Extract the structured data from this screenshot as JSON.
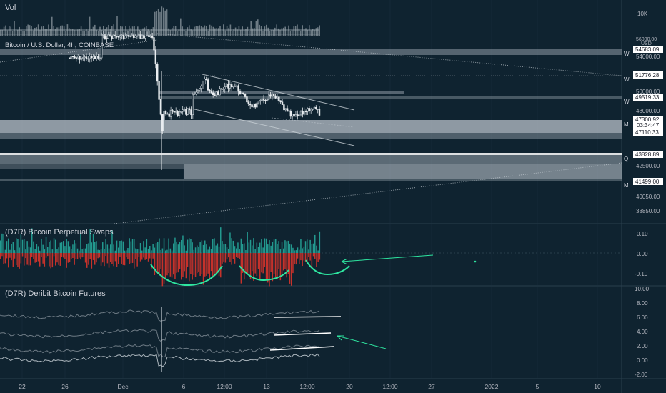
{
  "chart_data": {
    "type": "candlestick",
    "main_pane": {
      "title": "Bitcoin / U.S. Dollar, 4h, COINBASE",
      "currency": "USD",
      "y_ticks": [
        "56000.00",
        "54000.00",
        "50000.00",
        "48000.00",
        "42500.00",
        "40050.00",
        "38850.00"
      ],
      "price_tags": [
        {
          "value": "54683.09",
          "tf": "W"
        },
        {
          "value": "51776.28",
          "tf": "W"
        },
        {
          "value": "49519.33",
          "tf": "W"
        },
        {
          "value": "47300.92",
          "tf": "M"
        },
        {
          "value": "03:34:47",
          "tf": ""
        },
        {
          "value": "47110.33",
          "tf": ""
        },
        {
          "value": "43828.89",
          "tf": "Q"
        },
        {
          "value": "41499.00",
          "tf": "M"
        }
      ]
    },
    "volume_pane": {
      "title": "Vol",
      "y_ticks": [
        "10K"
      ]
    },
    "swaps_pane": {
      "title": "(D7R) Bitcoin Perpetual Swaps",
      "y_ticks": [
        "0.10",
        "0.00",
        "-0.10"
      ]
    },
    "futures_pane": {
      "title": "(D7R) Deribit Bitcoin Futures",
      "y_ticks": [
        "10.00",
        "8.00",
        "6.00",
        "4.00",
        "2.00",
        "0.00",
        "-2.00"
      ]
    },
    "x_ticks": [
      "22",
      "26",
      "Dec",
      "6",
      "12:00",
      "13",
      "12:00",
      "20",
      "12:00",
      "27",
      "2022",
      "5",
      "10"
    ]
  }
}
